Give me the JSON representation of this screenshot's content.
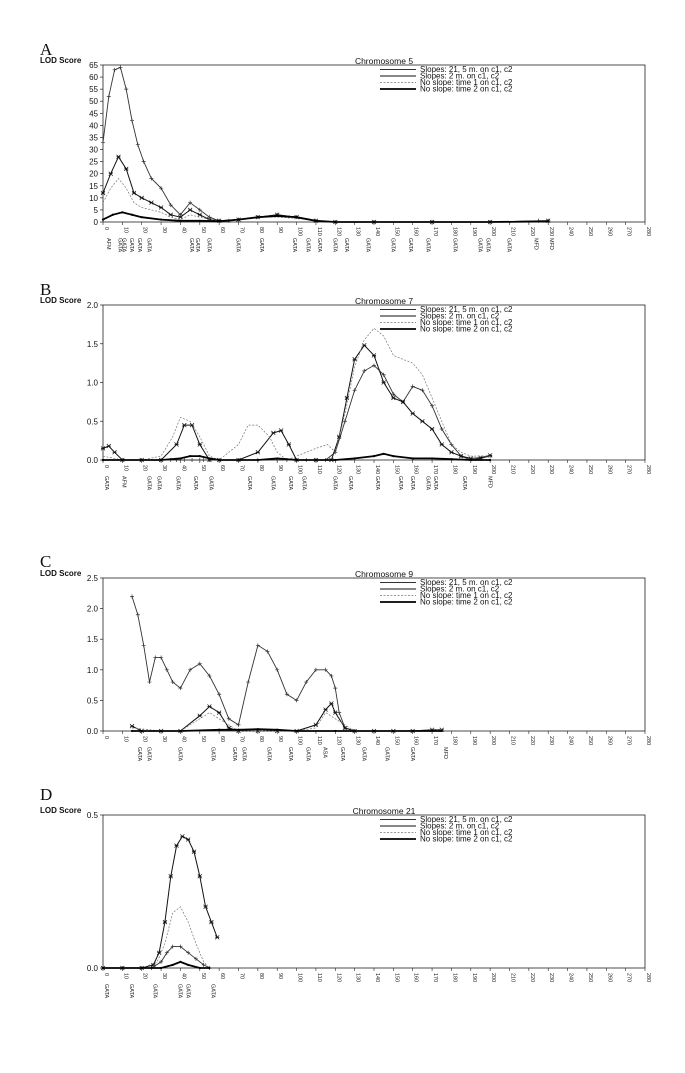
{
  "chart_data": [
    {
      "type": "line",
      "panel": "A",
      "title": "Chromosome 5",
      "ylabel": "LOD Score",
      "ylim": [
        0,
        65
      ],
      "yticks": [
        "0",
        "5",
        "10",
        "15",
        "20",
        "25",
        "30",
        "35",
        "40",
        "45",
        "50",
        "55",
        "60",
        "65"
      ],
      "xlim": [
        0,
        280
      ],
      "xticks": [
        "0",
        "10",
        "20",
        "30",
        "40",
        "50",
        "60",
        "70",
        "80",
        "90",
        "100",
        "110",
        "120",
        "130",
        "140",
        "150",
        "160",
        "170",
        "180",
        "190",
        "200",
        "210",
        "220",
        "230",
        "240",
        "250",
        "260",
        "270",
        "280"
      ],
      "markers": [
        "AFM",
        "GATA",
        "GATA",
        "GATA",
        "GATA",
        "GATA",
        "GATA",
        "GATA",
        "GATA",
        "GATA",
        "GATA",
        "GATA",
        "GATA",
        "GATA",
        "GATA",
        "GATA",
        "GATA",
        "GATA",
        "GATA",
        "GATA",
        "GATA",
        "GATA",
        "GATA",
        "GATA",
        "MFD",
        "MFD"
      ],
      "marker_positions": [
        1,
        7,
        9,
        13,
        17,
        22,
        44,
        47,
        53,
        68,
        80,
        97,
        104,
        110,
        118,
        124,
        135,
        148,
        157,
        166,
        180,
        193,
        197,
        208,
        222,
        230
      ],
      "legend": [
        "Slopes: 21, 5 m. on c1, c2",
        "Slopes: 2 m. on c1, c2",
        "No slope: time 1 on c1, c2",
        "No slope: time 2 on c1, c2"
      ],
      "series": [
        {
          "name": "Slopes: 21, 5 m. on c1, c2",
          "x": [
            0,
            3,
            6,
            9,
            12,
            15,
            18,
            21,
            25,
            30,
            35,
            40,
            45,
            50,
            55,
            60,
            65,
            70,
            80,
            90,
            100,
            110,
            120,
            140,
            170,
            200,
            225,
            230
          ],
          "y": [
            33,
            52,
            63,
            64,
            55,
            42,
            32,
            25,
            18,
            14,
            7,
            3,
            8,
            5,
            2,
            0.5,
            0.5,
            1,
            2,
            3,
            2,
            0.5,
            0,
            0,
            0,
            0,
            0.5,
            0.5
          ]
        },
        {
          "name": "Slopes: 2 m. on c1, c2",
          "x": [
            0,
            4,
            8,
            12,
            16,
            20,
            25,
            30,
            35,
            40,
            45,
            50,
            55,
            60,
            70,
            80,
            90,
            100,
            110,
            120,
            140,
            170,
            200,
            230
          ],
          "y": [
            12,
            20,
            27,
            22,
            12,
            10,
            8,
            6,
            3,
            2,
            5,
            3,
            1,
            0.5,
            1,
            2,
            3,
            2,
            0.5,
            0,
            0,
            0,
            0,
            0.5
          ]
        },
        {
          "name": "No slope: time 1 on c1, c2",
          "x": [
            0,
            4,
            8,
            12,
            16,
            20,
            25,
            30,
            35,
            40,
            45,
            50,
            55,
            60,
            70,
            80,
            90,
            100,
            110,
            120,
            140,
            170,
            200,
            230
          ],
          "y": [
            8,
            14,
            18,
            14,
            8,
            6,
            5,
            4,
            2,
            1,
            3,
            2,
            1,
            0.5,
            1,
            2,
            2,
            1.5,
            0.5,
            0,
            0,
            0,
            0,
            0.3
          ]
        },
        {
          "name": "No slope: time 2 on c1, c2",
          "x": [
            0,
            5,
            10,
            15,
            20,
            30,
            40,
            50,
            60,
            70,
            80,
            90,
            100,
            110,
            120,
            140,
            170,
            200,
            230
          ],
          "y": [
            1,
            3,
            4,
            3,
            2,
            1,
            0.5,
            0.5,
            0.3,
            1,
            2,
            2.5,
            2,
            0.5,
            0,
            0,
            0,
            0,
            0.2
          ]
        }
      ]
    },
    {
      "type": "line",
      "panel": "B",
      "title": "Chromosome 7",
      "ylabel": "LOD Score",
      "ylim": [
        0,
        2
      ],
      "yticks": [
        "0.0",
        "0.5",
        "1.0",
        "1.5",
        "2.0"
      ],
      "xlim": [
        0,
        280
      ],
      "xticks": [
        "0",
        "10",
        "20",
        "30",
        "40",
        "50",
        "60",
        "70",
        "80",
        "90",
        "100",
        "110",
        "120",
        "130",
        "140",
        "150",
        "160",
        "170",
        "180",
        "190",
        "200",
        "210",
        "220",
        "230",
        "240",
        "250",
        "260",
        "270",
        "280"
      ],
      "markers": [
        "GATA",
        "AFM",
        "GATA",
        "GATA",
        "GATA",
        "GATA",
        "GATA",
        "GATA",
        "GATA",
        "GATA",
        "GATA",
        "GATA",
        "GATA",
        "GATA",
        "GATA",
        "GATA",
        "GATA",
        "GATA",
        "GATA",
        "MFD"
      ],
      "marker_positions": [
        0,
        9,
        22,
        27,
        37,
        46,
        54,
        74,
        86,
        95,
        102,
        118,
        126,
        140,
        152,
        158,
        166,
        170,
        185,
        198
      ],
      "legend": [
        "Slopes: 21, 5 m. on c1, c2",
        "Slopes: 2 m. on c1, c2",
        "No slope: time 1 on c1, c2",
        "No slope: time 2 on c1, c2"
      ],
      "series": [
        {
          "name": "Slopes: 21, 5 m. on c1, c2",
          "x": [
            0,
            10,
            20,
            30,
            35,
            38,
            42,
            46,
            50,
            52,
            55,
            60,
            70,
            80,
            90,
            95,
            100,
            105,
            110,
            115,
            120,
            125,
            130,
            135,
            140,
            145,
            150,
            155,
            160,
            165,
            170,
            175,
            180,
            185,
            190,
            195,
            200
          ],
          "y": [
            0,
            0,
            0,
            0,
            0,
            0,
            0,
            0,
            0,
            0,
            0,
            0,
            0,
            0,
            0,
            0,
            0,
            0,
            0,
            0,
            0.1,
            0.5,
            0.9,
            1.15,
            1.22,
            1.1,
            0.85,
            0.75,
            0.95,
            0.9,
            0.7,
            0.4,
            0.2,
            0.05,
            0,
            0.02,
            0.05
          ]
        },
        {
          "name": "Slopes: 2 m. on c1, c2",
          "x": [
            0,
            3,
            6,
            10,
            20,
            30,
            38,
            42,
            46,
            50,
            55,
            60,
            70,
            80,
            88,
            92,
            96,
            100,
            110,
            118,
            122,
            126,
            130,
            135,
            140,
            145,
            150,
            155,
            160,
            165,
            170,
            175,
            180,
            185,
            190,
            195,
            200
          ],
          "y": [
            0.15,
            0.18,
            0.1,
            0,
            0,
            0,
            0.2,
            0.45,
            0.45,
            0.2,
            0,
            0,
            0,
            0.1,
            0.35,
            0.38,
            0.2,
            0,
            0,
            0,
            0.3,
            0.8,
            1.3,
            1.48,
            1.35,
            1.0,
            0.8,
            0.75,
            0.6,
            0.5,
            0.4,
            0.2,
            0.1,
            0.05,
            0.02,
            0.03,
            0.06
          ]
        },
        {
          "name": "No slope: time 1 on c1, c2",
          "x": [
            0,
            10,
            20,
            30,
            36,
            40,
            45,
            50,
            55,
            60,
            70,
            75,
            80,
            86,
            90,
            95,
            100,
            110,
            116,
            120,
            125,
            130,
            135,
            140,
            145,
            150,
            155,
            160,
            165,
            170,
            175,
            180,
            185,
            190,
            200
          ],
          "y": [
            0.05,
            0,
            0,
            0.05,
            0.3,
            0.55,
            0.5,
            0.3,
            0.05,
            0,
            0.2,
            0.45,
            0.45,
            0.3,
            0.1,
            0,
            0.05,
            0.15,
            0.2,
            0.1,
            0.6,
            1.2,
            1.55,
            1.7,
            1.6,
            1.35,
            1.3,
            1.25,
            1.1,
            0.8,
            0.5,
            0.2,
            0.1,
            0.05,
            0.05
          ]
        },
        {
          "name": "No slope: time 2 on c1, c2",
          "x": [
            0,
            10,
            20,
            30,
            40,
            45,
            50,
            55,
            60,
            80,
            90,
            100,
            120,
            130,
            140,
            145,
            150,
            160,
            170,
            180,
            190,
            200
          ],
          "y": [
            0,
            0,
            0,
            0,
            0.02,
            0.05,
            0.05,
            0.02,
            0,
            0,
            0.02,
            0,
            0,
            0.02,
            0.05,
            0.08,
            0.05,
            0.02,
            0.02,
            0.01,
            0,
            0
          ]
        }
      ]
    },
    {
      "type": "line",
      "panel": "C",
      "title": "Chromosome 9",
      "ylabel": "LOD Score",
      "ylim": [
        0,
        2.5
      ],
      "yticks": [
        "0.0",
        "0.5",
        "1.0",
        "1.5",
        "2.0",
        "2.5"
      ],
      "xlim": [
        0,
        280
      ],
      "xticks": [
        "0",
        "10",
        "20",
        "30",
        "40",
        "50",
        "60",
        "70",
        "80",
        "90",
        "100",
        "110",
        "120",
        "130",
        "140",
        "150",
        "160",
        "170",
        "180",
        "190",
        "200",
        "210",
        "220",
        "230",
        "240",
        "250",
        "260",
        "270",
        "280"
      ],
      "markers": [
        "GATA",
        "GATA",
        "GATA",
        "GATA",
        "GATA",
        "GATA",
        "GATA",
        "GATA",
        "GATA",
        "ASA",
        "GATA",
        "GATA",
        "GATA",
        "GATA",
        "MFD"
      ],
      "marker_positions": [
        17,
        22,
        38,
        55,
        66,
        71,
        84,
        95,
        104,
        113,
        122,
        133,
        145,
        158,
        175
      ],
      "legend": [
        "Slopes: 21, 5 m. on c1, c2",
        "Slopes: 2 m. on c1, c2",
        "No slope: time 1 on c1, c2",
        "No slope: time 2 on c1, c2"
      ],
      "series": [
        {
          "name": "Slopes: 21, 5 m. on c1, c2",
          "x": [
            15,
            18,
            21,
            24,
            27,
            30,
            33,
            36,
            40,
            45,
            50,
            55,
            60,
            65,
            70,
            75,
            80,
            85,
            90,
            95,
            100,
            105,
            110,
            115,
            118,
            120,
            122,
            125,
            130
          ],
          "y": [
            2.2,
            1.9,
            1.4,
            0.8,
            1.2,
            1.2,
            1.0,
            0.8,
            0.7,
            1.0,
            1.1,
            0.9,
            0.6,
            0.2,
            0.1,
            0.8,
            1.4,
            1.3,
            1.0,
            0.6,
            0.5,
            0.8,
            1.0,
            1.0,
            0.9,
            0.7,
            0.3,
            0.05,
            0
          ]
        },
        {
          "name": "Slopes: 2 m. on c1, c2",
          "x": [
            15,
            20,
            30,
            40,
            50,
            55,
            60,
            65,
            70,
            80,
            90,
            100,
            110,
            115,
            118,
            120,
            125,
            130,
            140,
            150,
            160,
            170,
            175
          ],
          "y": [
            0.08,
            0,
            0,
            0,
            0.25,
            0.4,
            0.3,
            0.05,
            0,
            0,
            0,
            0,
            0.1,
            0.35,
            0.45,
            0.3,
            0.05,
            0,
            0,
            0,
            0,
            0.02,
            0.02
          ]
        },
        {
          "name": "No slope: time 1 on c1, c2",
          "x": [
            15,
            30,
            40,
            50,
            55,
            60,
            70,
            80,
            90,
            100,
            110,
            115,
            120,
            130,
            150,
            175
          ],
          "y": [
            0.05,
            0,
            0,
            0.2,
            0.3,
            0.2,
            0,
            0,
            0,
            0,
            0.05,
            0.3,
            0.2,
            0,
            0,
            0.02
          ]
        },
        {
          "name": "No slope: time 2 on c1, c2",
          "x": [
            15,
            20,
            40,
            60,
            70,
            80,
            90,
            100,
            120,
            140,
            160,
            175
          ],
          "y": [
            0,
            0,
            0,
            0.02,
            0.02,
            0.03,
            0.02,
            0,
            0,
            0,
            0,
            0
          ]
        }
      ]
    },
    {
      "type": "line",
      "panel": "D",
      "title": "Chromosome 21",
      "ylabel": "LOD Score",
      "ylim": [
        0,
        0.5
      ],
      "yticks": [
        "0.0",
        "0.5"
      ],
      "xlim": [
        0,
        280
      ],
      "xticks": [
        "0",
        "10",
        "20",
        "30",
        "40",
        "50",
        "60",
        "70",
        "80",
        "90",
        "100",
        "110",
        "120",
        "130",
        "140",
        "150",
        "160",
        "170",
        "180",
        "190",
        "200",
        "210",
        "220",
        "230",
        "240",
        "250",
        "260",
        "270",
        "280"
      ],
      "markers": [
        "GATA",
        "GATA",
        "GATA",
        "GATA",
        "GATA",
        "GATA"
      ],
      "marker_positions": [
        0,
        13,
        25,
        38,
        42,
        55
      ],
      "legend": [
        "Slopes: 21, 5 m. on c1, c2",
        "Slopes: 2 m. on c1, c2",
        "No slope: time 1 on c1, c2",
        "No slope: time 2 on c1, c2"
      ],
      "series": [
        {
          "name": "Slopes: 21, 5 m. on c1, c2",
          "x": [
            0,
            10,
            20,
            25,
            30,
            33,
            36,
            40,
            44,
            48,
            52,
            55
          ],
          "y": [
            0,
            0,
            0,
            0,
            0.02,
            0.05,
            0.07,
            0.07,
            0.05,
            0.03,
            0.01,
            0
          ]
        },
        {
          "name": "Slopes: 2 m. on c1, c2",
          "x": [
            0,
            10,
            20,
            26,
            29,
            32,
            35,
            38,
            41,
            44,
            47,
            50,
            53,
            56,
            59
          ],
          "y": [
            0,
            0,
            0,
            0.01,
            0.05,
            0.15,
            0.3,
            0.4,
            0.43,
            0.42,
            0.38,
            0.3,
            0.2,
            0.15,
            0.1
          ]
        },
        {
          "name": "No slope: time 1 on c1, c2",
          "x": [
            0,
            20,
            28,
            32,
            36,
            40,
            44,
            48,
            52,
            55
          ],
          "y": [
            0,
            0,
            0.02,
            0.08,
            0.18,
            0.2,
            0.15,
            0.08,
            0.02,
            0
          ]
        },
        {
          "name": "No slope: time 2 on c1, c2",
          "x": [
            0,
            20,
            30,
            36,
            40,
            44,
            50,
            55
          ],
          "y": [
            0,
            0,
            0,
            0.01,
            0.02,
            0.01,
            0,
            0
          ]
        }
      ]
    }
  ]
}
